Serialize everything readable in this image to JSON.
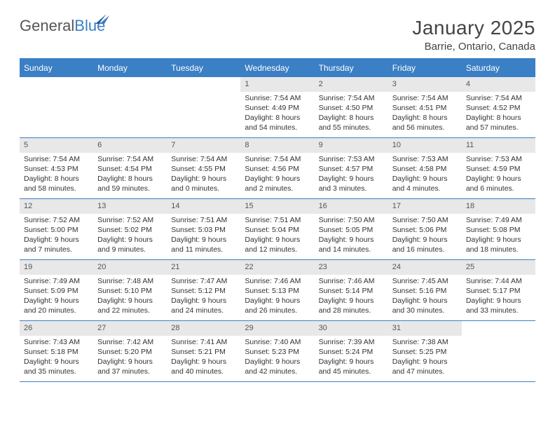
{
  "branding": {
    "logo_word1": "General",
    "logo_word2": "Blue",
    "logo_gray": "#6b6b6b",
    "logo_blue": "#2f6fb0",
    "flag_color": "#1f5a9a"
  },
  "header": {
    "title": "January 2025",
    "location": "Barrie, Ontario, Canada"
  },
  "style": {
    "header_bg": "#3b7fc4",
    "header_fg": "#ffffff",
    "daynum_bg": "#e8e8e8",
    "rule_color": "#3b7fc4",
    "text_color": "#333333",
    "day_fontsize": 10.5,
    "headcell_fontsize": 12,
    "title_fontsize": 28,
    "location_fontsize": 15
  },
  "daynames": [
    "Sunday",
    "Monday",
    "Tuesday",
    "Wednesday",
    "Thursday",
    "Friday",
    "Saturday"
  ],
  "weeks": [
    [
      {
        "n": "",
        "sr": "",
        "ss": "",
        "dl": "",
        "empty": true
      },
      {
        "n": "",
        "sr": "",
        "ss": "",
        "dl": "",
        "empty": true
      },
      {
        "n": "",
        "sr": "",
        "ss": "",
        "dl": "",
        "empty": true
      },
      {
        "n": "1",
        "sr": "Sunrise: 7:54 AM",
        "ss": "Sunset: 4:49 PM",
        "dl": "Daylight: 8 hours and 54 minutes."
      },
      {
        "n": "2",
        "sr": "Sunrise: 7:54 AM",
        "ss": "Sunset: 4:50 PM",
        "dl": "Daylight: 8 hours and 55 minutes."
      },
      {
        "n": "3",
        "sr": "Sunrise: 7:54 AM",
        "ss": "Sunset: 4:51 PM",
        "dl": "Daylight: 8 hours and 56 minutes."
      },
      {
        "n": "4",
        "sr": "Sunrise: 7:54 AM",
        "ss": "Sunset: 4:52 PM",
        "dl": "Daylight: 8 hours and 57 minutes."
      }
    ],
    [
      {
        "n": "5",
        "sr": "Sunrise: 7:54 AM",
        "ss": "Sunset: 4:53 PM",
        "dl": "Daylight: 8 hours and 58 minutes."
      },
      {
        "n": "6",
        "sr": "Sunrise: 7:54 AM",
        "ss": "Sunset: 4:54 PM",
        "dl": "Daylight: 8 hours and 59 minutes."
      },
      {
        "n": "7",
        "sr": "Sunrise: 7:54 AM",
        "ss": "Sunset: 4:55 PM",
        "dl": "Daylight: 9 hours and 0 minutes."
      },
      {
        "n": "8",
        "sr": "Sunrise: 7:54 AM",
        "ss": "Sunset: 4:56 PM",
        "dl": "Daylight: 9 hours and 2 minutes."
      },
      {
        "n": "9",
        "sr": "Sunrise: 7:53 AM",
        "ss": "Sunset: 4:57 PM",
        "dl": "Daylight: 9 hours and 3 minutes."
      },
      {
        "n": "10",
        "sr": "Sunrise: 7:53 AM",
        "ss": "Sunset: 4:58 PM",
        "dl": "Daylight: 9 hours and 4 minutes."
      },
      {
        "n": "11",
        "sr": "Sunrise: 7:53 AM",
        "ss": "Sunset: 4:59 PM",
        "dl": "Daylight: 9 hours and 6 minutes."
      }
    ],
    [
      {
        "n": "12",
        "sr": "Sunrise: 7:52 AM",
        "ss": "Sunset: 5:00 PM",
        "dl": "Daylight: 9 hours and 7 minutes."
      },
      {
        "n": "13",
        "sr": "Sunrise: 7:52 AM",
        "ss": "Sunset: 5:02 PM",
        "dl": "Daylight: 9 hours and 9 minutes."
      },
      {
        "n": "14",
        "sr": "Sunrise: 7:51 AM",
        "ss": "Sunset: 5:03 PM",
        "dl": "Daylight: 9 hours and 11 minutes."
      },
      {
        "n": "15",
        "sr": "Sunrise: 7:51 AM",
        "ss": "Sunset: 5:04 PM",
        "dl": "Daylight: 9 hours and 12 minutes."
      },
      {
        "n": "16",
        "sr": "Sunrise: 7:50 AM",
        "ss": "Sunset: 5:05 PM",
        "dl": "Daylight: 9 hours and 14 minutes."
      },
      {
        "n": "17",
        "sr": "Sunrise: 7:50 AM",
        "ss": "Sunset: 5:06 PM",
        "dl": "Daylight: 9 hours and 16 minutes."
      },
      {
        "n": "18",
        "sr": "Sunrise: 7:49 AM",
        "ss": "Sunset: 5:08 PM",
        "dl": "Daylight: 9 hours and 18 minutes."
      }
    ],
    [
      {
        "n": "19",
        "sr": "Sunrise: 7:49 AM",
        "ss": "Sunset: 5:09 PM",
        "dl": "Daylight: 9 hours and 20 minutes."
      },
      {
        "n": "20",
        "sr": "Sunrise: 7:48 AM",
        "ss": "Sunset: 5:10 PM",
        "dl": "Daylight: 9 hours and 22 minutes."
      },
      {
        "n": "21",
        "sr": "Sunrise: 7:47 AM",
        "ss": "Sunset: 5:12 PM",
        "dl": "Daylight: 9 hours and 24 minutes."
      },
      {
        "n": "22",
        "sr": "Sunrise: 7:46 AM",
        "ss": "Sunset: 5:13 PM",
        "dl": "Daylight: 9 hours and 26 minutes."
      },
      {
        "n": "23",
        "sr": "Sunrise: 7:46 AM",
        "ss": "Sunset: 5:14 PM",
        "dl": "Daylight: 9 hours and 28 minutes."
      },
      {
        "n": "24",
        "sr": "Sunrise: 7:45 AM",
        "ss": "Sunset: 5:16 PM",
        "dl": "Daylight: 9 hours and 30 minutes."
      },
      {
        "n": "25",
        "sr": "Sunrise: 7:44 AM",
        "ss": "Sunset: 5:17 PM",
        "dl": "Daylight: 9 hours and 33 minutes."
      }
    ],
    [
      {
        "n": "26",
        "sr": "Sunrise: 7:43 AM",
        "ss": "Sunset: 5:18 PM",
        "dl": "Daylight: 9 hours and 35 minutes."
      },
      {
        "n": "27",
        "sr": "Sunrise: 7:42 AM",
        "ss": "Sunset: 5:20 PM",
        "dl": "Daylight: 9 hours and 37 minutes."
      },
      {
        "n": "28",
        "sr": "Sunrise: 7:41 AM",
        "ss": "Sunset: 5:21 PM",
        "dl": "Daylight: 9 hours and 40 minutes."
      },
      {
        "n": "29",
        "sr": "Sunrise: 7:40 AM",
        "ss": "Sunset: 5:23 PM",
        "dl": "Daylight: 9 hours and 42 minutes."
      },
      {
        "n": "30",
        "sr": "Sunrise: 7:39 AM",
        "ss": "Sunset: 5:24 PM",
        "dl": "Daylight: 9 hours and 45 minutes."
      },
      {
        "n": "31",
        "sr": "Sunrise: 7:38 AM",
        "ss": "Sunset: 5:25 PM",
        "dl": "Daylight: 9 hours and 47 minutes."
      },
      {
        "n": "",
        "sr": "",
        "ss": "",
        "dl": "",
        "empty": true
      }
    ]
  ]
}
